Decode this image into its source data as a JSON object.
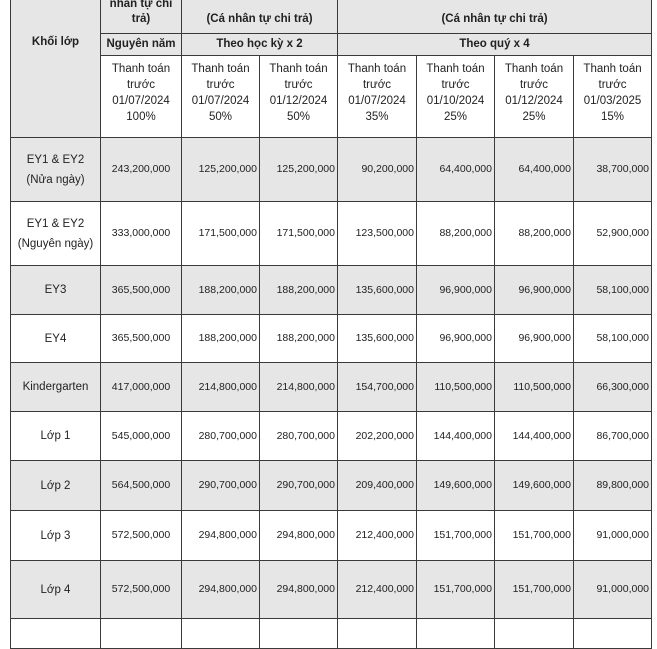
{
  "table": {
    "header": {
      "grade": "Khối lớp",
      "full_year_note": "nhân tự chi trả)",
      "semester_note": "(Cá nhân tự chi trả)",
      "quarter_note": "(Cá nhân tự chi trả)",
      "full_year": "Nguyên năm",
      "semester": "Theo học kỳ x 2",
      "quarter": "Theo quý x 4",
      "payments": [
        {
          "text": "Thanh toán trước",
          "date": "01/07/2024",
          "share": "100%"
        },
        {
          "text": "Thanh toán trước",
          "date": "01/07/2024",
          "share": "50%"
        },
        {
          "text": "Thanh toán trước",
          "date": "01/12/2024",
          "share": "50%"
        },
        {
          "text": "Thanh toán trước",
          "date": "01/07/2024",
          "share": "35%"
        },
        {
          "text": "Thanh toán trước",
          "date": "01/10/2024",
          "share": "25%"
        },
        {
          "text": "Thanh toán trước",
          "date": "01/12/2024",
          "share": "25%"
        },
        {
          "text": "Thanh toán trước",
          "date": "01/03/2025",
          "share": "15%"
        }
      ]
    },
    "rows": [
      {
        "grade": [
          "EY1 & EY2",
          "(Nửa ngày)"
        ],
        "fees": [
          "243,200,000",
          "125,200,000",
          "125,200,000",
          "90,200,000",
          "64,400,000",
          "64,400,000",
          "38,700,000"
        ]
      },
      {
        "grade": [
          "EY1 & EY2",
          "(Nguyên ngày)"
        ],
        "fees": [
          "333,000,000",
          "171,500,000",
          "171,500,000",
          "123,500,000",
          "88,200,000",
          "88,200,000",
          "52,900,000"
        ]
      },
      {
        "grade": [
          "EY3"
        ],
        "fees": [
          "365,500,000",
          "188,200,000",
          "188,200,000",
          "135,600,000",
          "96,900,000",
          "96,900,000",
          "58,100,000"
        ]
      },
      {
        "grade": [
          "EY4"
        ],
        "fees": [
          "365,500,000",
          "188,200,000",
          "188,200,000",
          "135,600,000",
          "96,900,000",
          "96,900,000",
          "58,100,000"
        ]
      },
      {
        "grade": [
          "Kindergarten"
        ],
        "fees": [
          "417,000,000",
          "214,800,000",
          "214,800,000",
          "154,700,000",
          "110,500,000",
          "110,500,000",
          "66,300,000"
        ]
      },
      {
        "grade": [
          "Lớp 1"
        ],
        "fees": [
          "545,000,000",
          "280,700,000",
          "280,700,000",
          "202,200,000",
          "144,400,000",
          "144,400,000",
          "86,700,000"
        ]
      },
      {
        "grade": [
          "Lớp 2"
        ],
        "fees": [
          "564,500,000",
          "290,700,000",
          "290,700,000",
          "209,400,000",
          "149,600,000",
          "149,600,000",
          "89,800,000"
        ]
      },
      {
        "grade": [
          "Lớp 3"
        ],
        "fees": [
          "572,500,000",
          "294,800,000",
          "294,800,000",
          "212,400,000",
          "151,700,000",
          "151,700,000",
          "91,000,000"
        ]
      },
      {
        "grade": [
          "Lớp 4"
        ],
        "fees": [
          "572,500,000",
          "294,800,000",
          "294,800,000",
          "212,400,000",
          "151,700,000",
          "151,700,000",
          "91,000,000"
        ]
      }
    ]
  }
}
